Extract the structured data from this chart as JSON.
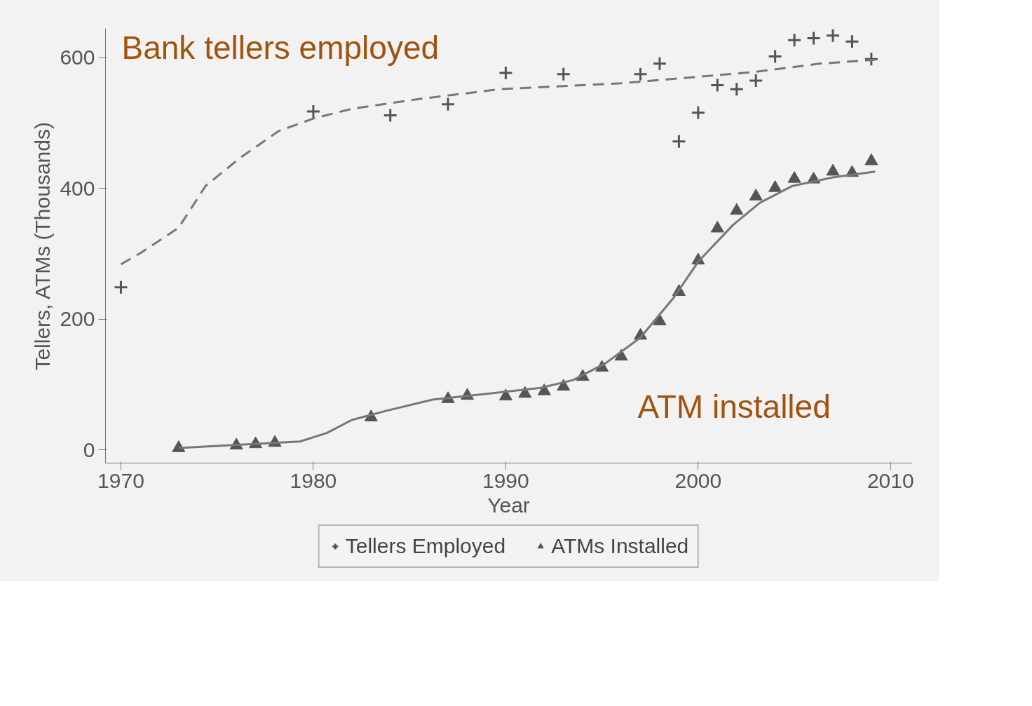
{
  "chart_data": {
    "type": "scatter",
    "xlabel": "Year",
    "ylabel": "Tellers, ATMs (Thousands)",
    "xlim": [
      1969.2,
      2011.1
    ],
    "ylim": [
      -20,
      645
    ],
    "xticks": [
      1970,
      1980,
      1990,
      2000,
      2010
    ],
    "yticks": [
      0,
      200,
      400,
      600
    ],
    "grid": false,
    "legend": "bottom",
    "annotations": [
      "Bank tellers employed",
      "ATM installed"
    ],
    "series": [
      {
        "name": "Tellers Employed",
        "marker": "cross",
        "color": "#555555",
        "x": [
          1970,
          1980,
          1984,
          1987,
          1990,
          1993,
          1997,
          1998,
          1999,
          2000,
          2001,
          2002,
          2003,
          2004,
          2005,
          2006,
          2007,
          2008,
          2009
        ],
        "values": [
          249,
          518,
          512,
          529,
          577,
          575,
          575,
          591,
          472,
          516,
          558,
          552,
          565,
          602,
          627,
          630,
          634,
          625,
          598
        ]
      },
      {
        "name": "ATMs Installed",
        "marker": "triangle",
        "color": "#555555",
        "x": [
          1973,
          1976,
          1977,
          1978,
          1983,
          1987,
          1988,
          1990,
          1991,
          1992,
          1993,
          1994,
          1995,
          1996,
          1997,
          1998,
          1999,
          2000,
          2001,
          2002,
          2003,
          2004,
          2005,
          2006,
          2007,
          2008,
          2009
        ],
        "values": [
          3,
          7,
          9,
          11,
          50,
          78,
          83,
          82,
          86,
          90,
          97,
          112,
          126,
          143,
          175,
          197,
          242,
          290,
          339,
          366,
          388,
          401,
          415,
          414,
          426,
          424,
          442
        ]
      },
      {
        "type": "line",
        "line_style": "dashed",
        "color": "#777777",
        "x": [
          1970,
          1971,
          1973,
          1974.4,
          1976.2,
          1978.2,
          1980,
          1982,
          1985.5,
          1989.7,
          1996,
          1997.6,
          2002.8,
          2006.3,
          2009.2
        ],
        "values": [
          284,
          301,
          340,
          404,
          447,
          488,
          507,
          522,
          537,
          552,
          561,
          565,
          578,
          591,
          597
        ]
      },
      {
        "type": "line",
        "line_style": "solid",
        "color": "#777777",
        "x": [
          1973,
          1979.3,
          1980.7,
          1982,
          1983.8,
          1986.2,
          1989,
          1991.8,
          1993.5,
          1995.2,
          1997,
          1998.7,
          2000,
          2001.8,
          2003.2,
          2004.9,
          2007,
          2009.2
        ],
        "values": [
          3,
          13,
          26,
          46,
          60,
          77,
          86,
          95,
          107,
          133,
          172,
          232,
          288,
          344,
          378,
          404,
          417,
          426
        ]
      }
    ]
  }
}
